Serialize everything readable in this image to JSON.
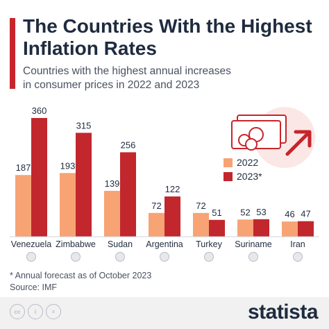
{
  "header": {
    "title_line1": "The Countries With the Highest",
    "title_line2": "Inflation Rates",
    "subtitle_line1": "Countries with the highest annual increases",
    "subtitle_line2": "in consumer prices in 2022 and 2023"
  },
  "colors": {
    "accent": "#c8242b",
    "series_2022": "#f7a374",
    "series_2023": "#c1272d",
    "text": "#1f2b3e"
  },
  "chart_data": {
    "type": "bar",
    "title": "The Countries With the Highest Inflation Rates",
    "categories": [
      "Venezuela",
      "Zimbabwe",
      "Sudan",
      "Argentina",
      "Turkey",
      "Suriname",
      "Iran"
    ],
    "series": [
      {
        "name": "2022",
        "values": [
          187,
          193,
          139,
          72,
          72,
          52,
          46
        ]
      },
      {
        "name": "2023*",
        "values": [
          360,
          315,
          256,
          122,
          51,
          53,
          47
        ]
      }
    ],
    "legend": "top-right",
    "grid": false
  },
  "footer": {
    "note": "* Annual forecast as of October 2023",
    "source": "Source: IMF",
    "brand": "statista"
  },
  "icons": [
    "money-icon",
    "arrow-up-right-icon",
    "flag-icon",
    "creative-commons-icon",
    "attribution-icon",
    "no-derivatives-icon"
  ]
}
